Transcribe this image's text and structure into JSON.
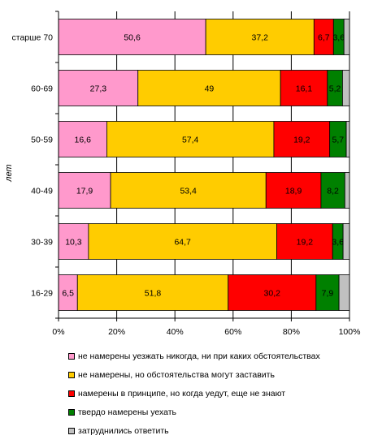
{
  "chart_data": {
    "type": "bar",
    "orientation": "horizontal",
    "stacked": true,
    "ylabel": "лет",
    "categories": [
      "старше 70",
      "60-69",
      "50-59",
      "40-49",
      "30-39",
      "16-29"
    ],
    "series": [
      {
        "name": "не намерены уезжать никогда, ни при каких обстоятельствах",
        "color": "#FF99CC",
        "values": [
          50.6,
          27.3,
          16.6,
          17.9,
          10.3,
          6.5
        ],
        "labels": [
          "50,6",
          "27,3",
          "16,6",
          "17,9",
          "10,3",
          "6,5"
        ]
      },
      {
        "name": "не намерены, но обстоятельства могут заставить",
        "color": "#FFCC00",
        "values": [
          37.2,
          49,
          57.4,
          53.4,
          64.7,
          51.8
        ],
        "labels": [
          "37,2",
          "49",
          "57,4",
          "53,4",
          "64,7",
          "51,8"
        ]
      },
      {
        "name": "намерены в принципе, но когда уедут, еще не знают",
        "color": "#FF0000",
        "values": [
          6.7,
          16.1,
          19.2,
          18.9,
          19.2,
          30.2
        ],
        "labels": [
          "6,7",
          "16,1",
          "19,2",
          "18,9",
          "19,2",
          "30,2"
        ]
      },
      {
        "name": "твердо намерены уехать",
        "color": "#008000",
        "values": [
          3.6,
          5.2,
          5.7,
          8.2,
          3.6,
          7.9
        ],
        "labels": [
          "3,6",
          "5,2",
          "5,7",
          "8,2",
          "3,6",
          "7,9"
        ]
      },
      {
        "name": "затруднились ответить",
        "color": "#C0C0C0",
        "values": [
          1.9,
          2.4,
          1.1,
          1.6,
          2.2,
          3.6
        ],
        "labels": [
          null,
          null,
          null,
          null,
          null,
          null
        ]
      }
    ],
    "xlim": [
      0,
      100
    ],
    "x_ticks": [
      "0%",
      "20%",
      "40%",
      "60%",
      "80%",
      "100%"
    ],
    "grid": true,
    "legend_position": "bottom"
  }
}
